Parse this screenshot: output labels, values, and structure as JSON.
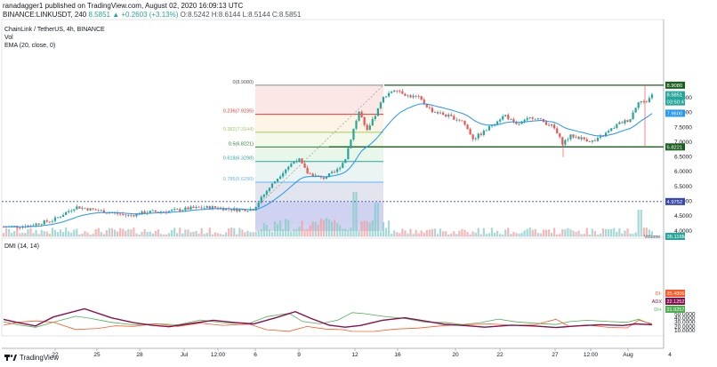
{
  "header": {
    "publisher_line": "ranadagger1 published on TradingView.com, August 02, 2020 16:09:13 UTC",
    "symbol_line": "BINANCE:LINKUSDT, 240",
    "ohlc": [
      "8.5851",
      "▲",
      "+0.2603 (+3.13%)",
      "O:8.5242",
      "H:8.6144",
      "L:8.5144",
      "C:8.5851"
    ]
  },
  "legend": {
    "title": "ChainLink / TetherUS, 4h, BINANCE",
    "vol": "Vol",
    "ema": "EMA (20, close, 0)"
  },
  "colors": {
    "up": "#26a69a",
    "down": "#ef5350",
    "ema": "#2196f3",
    "level_line": "#1b5e20",
    "dmi_plus": "#4caf50",
    "dmi_minus": "#ff5722",
    "adx": "#880e4f"
  },
  "chart_data": [
    {
      "type": "candlestick",
      "symbol": "LINKUSDT",
      "interval": "4h",
      "ylim": [
        3.95,
        9.2
      ],
      "y_ticks": [
        "8.5000",
        "8.0000",
        "7.5000",
        "7.0000",
        "6.5000",
        "6.0000",
        "5.5000",
        "5.0000",
        "4.5000",
        "4.0000"
      ],
      "x_ticks": [
        "22",
        "25",
        "28",
        "Jul",
        "12:00",
        "6",
        "9",
        "12",
        "16",
        "20",
        "22",
        "27",
        "12:00",
        "Aug",
        "4"
      ],
      "fib_levels": [
        {
          "label": "0(8.9080)",
          "value": 8.908
        },
        {
          "label": "0.236(7.9235)",
          "value": 7.9235
        },
        {
          "label": "0.382(7.3144)",
          "value": 7.3144
        },
        {
          "label": "0.5(6.8221)",
          "value": 6.8221
        },
        {
          "label": "0.618(6.3298)",
          "value": 6.3298
        },
        {
          "label": "0.786(5.6290)",
          "value": 5.629
        }
      ],
      "horizontal_levels": [
        "8.9080",
        "6.8221",
        "4.9752"
      ],
      "price_labels": {
        "last": "8.5851",
        "countdown": "03:50:47",
        "ema": "7.9600",
        "support": "6.8221",
        "resistance": "8.9080",
        "breakout": "4.9752",
        "volume": "36.116M"
      },
      "volume_label": "Volume"
    },
    {
      "type": "line",
      "title": "DMI (14, 14)",
      "ylim": [
        0,
        60
      ],
      "y_ticks": [
        "50.0000",
        "40.0000",
        "30.0000",
        "20.0000",
        "10.0000"
      ],
      "series": [
        {
          "name": "DI+",
          "value": "21.9257"
        },
        {
          "name": "DI-",
          "value": "25.4806"
        },
        {
          "name": "ADX",
          "value": "22.1252"
        }
      ]
    }
  ],
  "footer": {
    "logo": "TradingView"
  }
}
